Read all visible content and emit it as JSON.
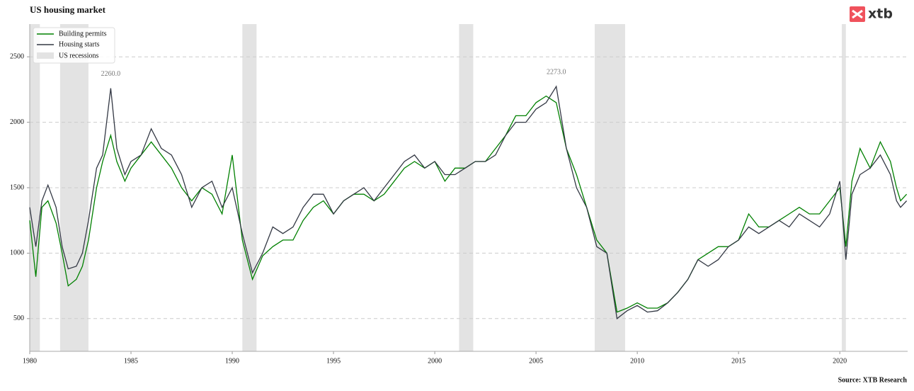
{
  "chart_data": {
    "type": "line",
    "title": "US housing market",
    "source": "Source: XTB Research",
    "logo": "xtb",
    "x": [
      1980.0,
      1980.3,
      1980.6,
      1980.9,
      1981.3,
      1981.6,
      1981.9,
      1982.3,
      1982.6,
      1982.9,
      1983.3,
      1983.6,
      1984.0,
      1984.3,
      1984.7,
      1985.0,
      1985.5,
      1986.0,
      1986.5,
      1987.0,
      1987.5,
      1988.0,
      1988.5,
      1989.0,
      1989.5,
      1990.0,
      1990.5,
      1991.0,
      1991.5,
      1992.0,
      1992.5,
      1993.0,
      1993.5,
      1994.0,
      1994.5,
      1995.0,
      1995.5,
      1996.0,
      1996.5,
      1997.0,
      1997.5,
      1998.0,
      1998.5,
      1999.0,
      1999.5,
      2000.0,
      2000.5,
      2001.0,
      2001.5,
      2002.0,
      2002.5,
      2003.0,
      2003.5,
      2004.0,
      2004.5,
      2005.0,
      2005.5,
      2006.0,
      2006.5,
      2007.0,
      2007.5,
      2008.0,
      2008.5,
      2009.0,
      2009.5,
      2010.0,
      2010.5,
      2011.0,
      2011.5,
      2012.0,
      2012.5,
      2013.0,
      2013.5,
      2014.0,
      2014.5,
      2015.0,
      2015.5,
      2016.0,
      2016.5,
      2017.0,
      2017.5,
      2018.0,
      2018.5,
      2019.0,
      2019.5,
      2020.0,
      2020.3,
      2020.6,
      2021.0,
      2021.5,
      2022.0,
      2022.5,
      2022.8,
      2023.0,
      2023.3
    ],
    "series": [
      {
        "name": "Building permits",
        "color": "#008000",
        "values": [
          1250,
          820,
          1350,
          1400,
          1230,
          1000,
          750,
          800,
          900,
          1100,
          1500,
          1700,
          1900,
          1700,
          1550,
          1650,
          1750,
          1850,
          1750,
          1650,
          1500,
          1400,
          1500,
          1450,
          1300,
          1750,
          1100,
          800,
          980,
          1050,
          1100,
          1100,
          1250,
          1350,
          1400,
          1300,
          1400,
          1450,
          1450,
          1400,
          1450,
          1550,
          1650,
          1700,
          1650,
          1700,
          1550,
          1650,
          1650,
          1700,
          1700,
          1800,
          1900,
          2050,
          2050,
          2150,
          2200,
          2150,
          1800,
          1600,
          1350,
          1100,
          1000,
          550,
          580,
          620,
          580,
          580,
          620,
          700,
          800,
          950,
          1000,
          1050,
          1050,
          1100,
          1300,
          1200,
          1200,
          1250,
          1300,
          1350,
          1300,
          1300,
          1400,
          1500,
          1050,
          1550,
          1800,
          1650,
          1850,
          1700,
          1500,
          1400,
          1450
        ]
      },
      {
        "name": "Housing starts",
        "color": "#333844",
        "values": [
          1350,
          1050,
          1400,
          1520,
          1350,
          1050,
          880,
          900,
          1000,
          1250,
          1650,
          1750,
          2260,
          1800,
          1600,
          1700,
          1750,
          1950,
          1800,
          1750,
          1600,
          1350,
          1500,
          1550,
          1350,
          1500,
          1150,
          850,
          1000,
          1200,
          1150,
          1200,
          1350,
          1450,
          1450,
          1300,
          1400,
          1450,
          1500,
          1400,
          1500,
          1600,
          1700,
          1750,
          1650,
          1700,
          1600,
          1600,
          1650,
          1700,
          1700,
          1750,
          1900,
          2000,
          2000,
          2100,
          2150,
          2273,
          1800,
          1500,
          1350,
          1050,
          1000,
          500,
          560,
          600,
          550,
          560,
          620,
          700,
          800,
          950,
          900,
          950,
          1050,
          1100,
          1200,
          1150,
          1200,
          1250,
          1200,
          1300,
          1250,
          1200,
          1300,
          1550,
          950,
          1450,
          1600,
          1650,
          1750,
          1600,
          1400,
          1350,
          1400
        ]
      }
    ],
    "recessions": {
      "name": "US recessions",
      "color": "#e3e3e3",
      "spans": [
        [
          1980.0,
          1980.5
        ],
        [
          1981.5,
          1982.9
        ],
        [
          1990.5,
          1991.2
        ],
        [
          2001.2,
          2001.9
        ],
        [
          2007.9,
          2009.4
        ],
        [
          2020.1,
          2020.3
        ]
      ]
    },
    "annotations": [
      {
        "x": 1984.0,
        "value": 2260,
        "label": "2260.0"
      },
      {
        "x": 2006.0,
        "value": 2273,
        "label": "2273.0"
      }
    ],
    "xlim": [
      1980,
      2023.35
    ],
    "xticks": [
      1980,
      1985,
      1990,
      1995,
      2000,
      2005,
      2010,
      2015,
      2020
    ],
    "ylim": [
      250,
      2750
    ],
    "yticks": [
      500,
      1000,
      1500,
      2000,
      2500
    ],
    "grid": true,
    "legend": "upper left"
  }
}
